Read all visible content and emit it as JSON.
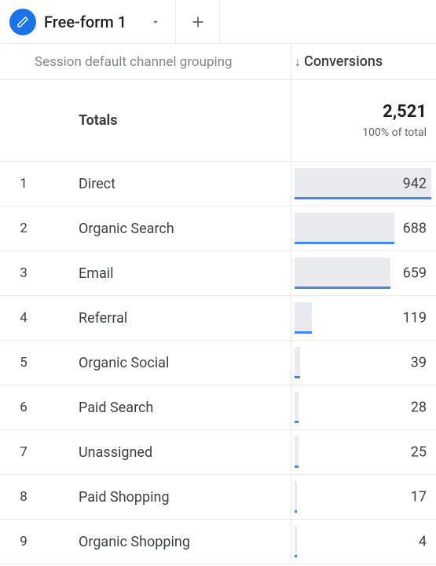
{
  "tab": {
    "title": "Free-form 1"
  },
  "dimension_header": "Session default channel grouping",
  "metric_header": "Conversions",
  "totals": {
    "label": "Totals",
    "value": "2,521",
    "pct": "100% of total",
    "numeric": 2521
  },
  "bar_max": 942,
  "colors": {
    "accent": "#1a73e8",
    "bar_underline": "#4285f4",
    "bar_fill": "#e8eaed",
    "text": "#3c4043",
    "muted": "#80868b",
    "border": "#e8eaed"
  },
  "rows": [
    {
      "label": "Direct",
      "value": 942
    },
    {
      "label": "Organic Search",
      "value": 688
    },
    {
      "label": "Email",
      "value": 659
    },
    {
      "label": "Referral",
      "value": 119
    },
    {
      "label": "Organic Social",
      "value": 39
    },
    {
      "label": "Paid Search",
      "value": 28
    },
    {
      "label": "Unassigned",
      "value": 25
    },
    {
      "label": "Paid Shopping",
      "value": 17
    },
    {
      "label": "Organic Shopping",
      "value": 4
    }
  ]
}
